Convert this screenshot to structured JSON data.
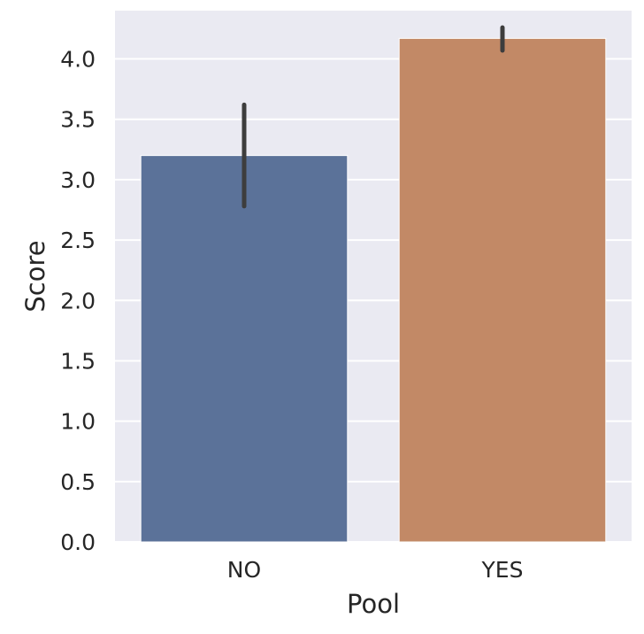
{
  "chart_data": {
    "type": "bar",
    "categories": [
      "NO",
      "YES"
    ],
    "values": [
      3.2,
      4.17
    ],
    "error_bars": [
      {
        "low": 2.78,
        "high": 3.62
      },
      {
        "low": 4.07,
        "high": 4.26
      }
    ],
    "colors": [
      "#5b7299",
      "#c28966"
    ],
    "xlabel": "Pool",
    "ylabel": "Score",
    "ylim": [
      0,
      4.4
    ],
    "yticks": [
      "0.0",
      "0.5",
      "1.0",
      "1.5",
      "2.0",
      "2.5",
      "3.0",
      "3.5",
      "4.0"
    ],
    "grid": true,
    "background": "#eaeaf2"
  }
}
